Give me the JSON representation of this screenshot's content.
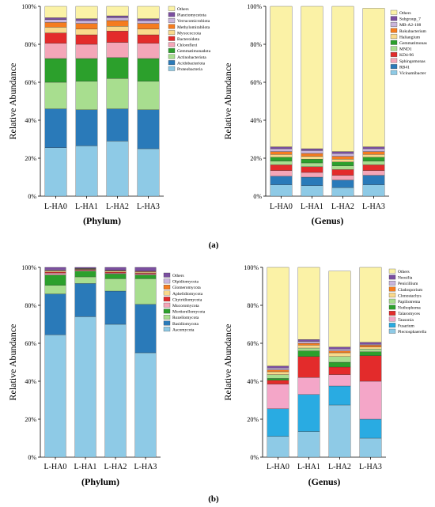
{
  "panel_labels": [
    "(a)",
    "(b)"
  ],
  "chart_data": [
    {
      "type": "bar",
      "stacked": true,
      "ylabel": "Relative Abundance",
      "xlabel": "(Phylum)",
      "ylim": [
        0,
        100
      ],
      "yticks": [
        "0%",
        "20%",
        "40%",
        "60%",
        "80%",
        "100%"
      ],
      "categories": [
        "L-HA0",
        "L-HA1",
        "L-HA2",
        "L-HA3"
      ],
      "legend_position": "top-right",
      "series": [
        {
          "name": "Proteobacteria",
          "color": "#8ecae6",
          "values": [
            25.5,
            26.5,
            29,
            25
          ]
        },
        {
          "name": "Acidobacteriota",
          "color": "#2a7ab9",
          "values": [
            20.5,
            19,
            17,
            20.5
          ]
        },
        {
          "name": "Actinobacteriota",
          "color": "#a8de8f",
          "values": [
            14,
            15,
            16,
            15
          ]
        },
        {
          "name": "Gemmatimonadota",
          "color": "#2ca02c",
          "values": [
            12.5,
            12,
            11,
            12
          ]
        },
        {
          "name": "Chloroflexi",
          "color": "#f4a6b8",
          "values": [
            8,
            7.5,
            8,
            8
          ]
        },
        {
          "name": "Bacteroidota",
          "color": "#e32b2b",
          "values": [
            5.5,
            5,
            6,
            4.5
          ]
        },
        {
          "name": "Myxococcota",
          "color": "#f9d98c",
          "values": [
            3,
            3,
            2.5,
            3
          ]
        },
        {
          "name": "Methylomirabilota",
          "color": "#f57c20",
          "values": [
            2.5,
            3,
            3,
            3
          ]
        },
        {
          "name": "Verrucomicrobiota",
          "color": "#c9b5dc",
          "values": [
            1.5,
            1.5,
            1.5,
            1.5
          ]
        },
        {
          "name": "Planctomycetota",
          "color": "#7b4fa0",
          "values": [
            1,
            1,
            1,
            1
          ]
        },
        {
          "name": "Others",
          "color": "#fbf2a6",
          "values": [
            6,
            6.5,
            5,
            6.5
          ]
        }
      ]
    },
    {
      "type": "bar",
      "stacked": true,
      "ylabel": "Relative Abundance",
      "xlabel": "(Genus)",
      "ylim": [
        0,
        100
      ],
      "yticks": [
        "0%",
        "20%",
        "40%",
        "60%",
        "80%",
        "100%"
      ],
      "categories": [
        "L-HA0",
        "L-HA1",
        "L-HA2",
        "L-HA3"
      ],
      "legend_position": "top-right",
      "series": [
        {
          "name": "Vicinamibacter",
          "color": "#8ecae6",
          "values": [
            6,
            5.5,
            4.5,
            6
          ]
        },
        {
          "name": "RB41",
          "color": "#2a7ab9",
          "values": [
            4.5,
            4.5,
            4,
            5
          ]
        },
        {
          "name": "Sphingomonas",
          "color": "#f4a6b8",
          "values": [
            3,
            2.5,
            2.5,
            2.5
          ]
        },
        {
          "name": "KD4-96",
          "color": "#e32b2b",
          "values": [
            3,
            3,
            3,
            3
          ]
        },
        {
          "name": "MND1",
          "color": "#a8de8f",
          "values": [
            2,
            2,
            2,
            2
          ]
        },
        {
          "name": "Gemmatimonas",
          "color": "#2ca02c",
          "values": [
            2,
            2,
            2,
            2
          ]
        },
        {
          "name": "Haliangium",
          "color": "#f9d98c",
          "values": [
            1.5,
            1.5,
            1.5,
            1.5
          ]
        },
        {
          "name": "Rokubacterium",
          "color": "#f57c20",
          "values": [
            1.5,
            1.5,
            1.5,
            1.5
          ]
        },
        {
          "name": "MB-A2-108",
          "color": "#c9b5dc",
          "values": [
            1.5,
            1.5,
            1.5,
            1.5
          ]
        },
        {
          "name": "Subgroup_7",
          "color": "#7b4fa0",
          "values": [
            1,
            1,
            1,
            1
          ]
        },
        {
          "name": "Others",
          "color": "#fbf2a6",
          "values": [
            74,
            75,
            76.5,
            73
          ]
        }
      ]
    },
    {
      "type": "bar",
      "stacked": true,
      "ylabel": "Relative Abundance",
      "xlabel": "(Phylum)",
      "ylim": [
        0,
        100
      ],
      "yticks": [
        "0%",
        "20%",
        "40%",
        "60%",
        "80%",
        "100%"
      ],
      "categories": [
        "L-HA0",
        "L-HA1",
        "L-HA2",
        "L-HA3"
      ],
      "legend_position": "top-right",
      "series": [
        {
          "name": "Ascomycota",
          "color": "#8ecae6",
          "values": [
            64.5,
            74,
            70,
            55
          ]
        },
        {
          "name": "Basidiomycota",
          "color": "#2a7ab9",
          "values": [
            21.5,
            17.5,
            17.5,
            25.5
          ]
        },
        {
          "name": "Rozellomycota",
          "color": "#a8de8f",
          "values": [
            4.5,
            3.5,
            6.5,
            13.5
          ]
        },
        {
          "name": "Mortierellomycota",
          "color": "#2ca02c",
          "values": [
            5.5,
            3,
            2.5,
            2
          ]
        },
        {
          "name": "Mucoromycota",
          "color": "#f4a6b8",
          "values": [
            1,
            0.5,
            0.5,
            0.5
          ]
        },
        {
          "name": "Chytridiomycota",
          "color": "#e32b2b",
          "values": [
            0.5,
            0.3,
            0.5,
            0.5
          ]
        },
        {
          "name": "Aphelidiomycota",
          "color": "#f9d98c",
          "values": [
            0.5,
            0.3,
            0.5,
            0.5
          ]
        },
        {
          "name": "Glomeromycota",
          "color": "#f57c20",
          "values": [
            0.3,
            0.2,
            0.3,
            0.3
          ]
        },
        {
          "name": "Olpidiomycota",
          "color": "#c9b5dc",
          "values": [
            0.4,
            0.2,
            0.2,
            0.2
          ]
        },
        {
          "name": "Others",
          "color": "#7b4fa0",
          "values": [
            1.3,
            0.5,
            1.5,
            2
          ]
        }
      ]
    },
    {
      "type": "bar",
      "stacked": true,
      "ylabel": "Relative Abundance",
      "xlabel": "(Genus)",
      "ylim": [
        0,
        100
      ],
      "yticks": [
        "0%",
        "20%",
        "40%",
        "60%",
        "80%",
        "100%"
      ],
      "categories": [
        "L-HA0",
        "L-HA1",
        "L-HA2",
        "L-HA3"
      ],
      "legend_position": "top-right",
      "series": [
        {
          "name": "Plectosphaerella",
          "color": "#8ecae6",
          "values": [
            11,
            13.5,
            27.5,
            10
          ]
        },
        {
          "name": "Fusarium",
          "color": "#29abe2",
          "values": [
            14.5,
            19.5,
            10,
            10
          ]
        },
        {
          "name": "Tausonia",
          "color": "#f4a6c8",
          "values": [
            13,
            9,
            6,
            20
          ]
        },
        {
          "name": "Talaromyces",
          "color": "#e32b2b",
          "values": [
            2,
            11,
            4,
            13.5
          ]
        },
        {
          "name": "Nothophoma",
          "color": "#2ca02c",
          "values": [
            1,
            3,
            2.5,
            2
          ]
        },
        {
          "name": "Papiliotrema",
          "color": "#a8de8f",
          "values": [
            2,
            1.5,
            3,
            1.5
          ]
        },
        {
          "name": "Clonostachys",
          "color": "#f9d98c",
          "values": [
            1.5,
            1.5,
            2,
            1
          ]
        },
        {
          "name": "Cladosporium",
          "color": "#f57c20",
          "values": [
            1,
            1,
            1,
            1
          ]
        },
        {
          "name": "Penicillium",
          "color": "#c9b5dc",
          "values": [
            1,
            1,
            1,
            0.5
          ]
        },
        {
          "name": "Neosilia",
          "color": "#7b4fa0",
          "values": [
            1,
            1,
            1,
            1
          ]
        },
        {
          "name": "Others",
          "color": "#fbf2a6",
          "values": [
            52,
            38,
            40,
            40
          ]
        }
      ]
    }
  ]
}
